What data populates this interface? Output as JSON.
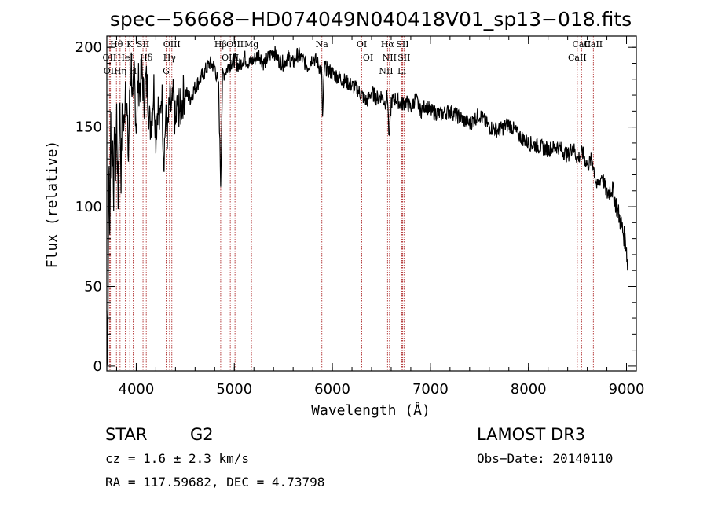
{
  "chart_data": {
    "type": "line",
    "title": "spec−56668−HD074049N040418V01_sp13−018.fits",
    "xlabel": "Wavelength (Å)",
    "ylabel": "Flux (relative)",
    "xlim": [
      3700,
      9100
    ],
    "ylim": [
      -3,
      207
    ],
    "xticks": [
      4000,
      5000,
      6000,
      7000,
      8000,
      9000
    ],
    "yticks": [
      0,
      50,
      100,
      150,
      200
    ],
    "series": [
      {
        "name": "flux",
        "x": [
          3700,
          3710,
          3720,
          3730,
          3740,
          3750,
          3760,
          3770,
          3780,
          3790,
          3800,
          3815,
          3830,
          3845,
          3860,
          3875,
          3890,
          3905,
          3920,
          3935,
          3950,
          3965,
          3980,
          4000,
          4020,
          4040,
          4060,
          4080,
          4100,
          4120,
          4140,
          4160,
          4180,
          4200,
          4220,
          4240,
          4260,
          4280,
          4300,
          4320,
          4340,
          4360,
          4380,
          4400,
          4420,
          4450,
          4480,
          4500,
          4550,
          4600,
          4650,
          4700,
          4750,
          4800,
          4840,
          4861,
          4880,
          4920,
          4960,
          5000,
          5050,
          5100,
          5150,
          5200,
          5250,
          5300,
          5350,
          5400,
          5450,
          5500,
          5550,
          5600,
          5650,
          5700,
          5750,
          5800,
          5850,
          5890,
          5900,
          5920,
          5950,
          6000,
          6050,
          6100,
          6150,
          6200,
          6250,
          6300,
          6350,
          6400,
          6450,
          6500,
          6540,
          6563,
          6580,
          6600,
          6650,
          6700,
          6750,
          6800,
          6850,
          6900,
          6950,
          7000,
          7100,
          7200,
          7300,
          7400,
          7500,
          7600,
          7700,
          7800,
          7900,
          8000,
          8100,
          8200,
          8300,
          8400,
          8450,
          8500,
          8550,
          8600,
          8650,
          8700,
          8750,
          8800,
          8850,
          8900,
          8950,
          9000,
          9010
        ],
        "y": [
          35,
          8,
          130,
          85,
          155,
          125,
          140,
          110,
          150,
          125,
          160,
          100,
          170,
          120,
          165,
          145,
          180,
          160,
          130,
          175,
          190,
          160,
          185,
          150,
          178,
          175,
          185,
          165,
          180,
          170,
          150,
          160,
          175,
          145,
          165,
          150,
          175,
          130,
          155,
          145,
          165,
          160,
          168,
          150,
          165,
          160,
          170,
          172,
          168,
          175,
          180,
          185,
          190,
          188,
          175,
          115,
          182,
          186,
          190,
          192,
          188,
          194,
          190,
          192,
          196,
          190,
          194,
          198,
          192,
          190,
          194,
          190,
          196,
          192,
          188,
          194,
          190,
          185,
          155,
          188,
          186,
          184,
          182,
          180,
          178,
          176,
          174,
          170,
          166,
          172,
          168,
          170,
          165,
          170,
          140,
          166,
          168,
          164,
          166,
          162,
          168,
          160,
          164,
          160,
          158,
          160,
          156,
          152,
          158,
          150,
          148,
          152,
          145,
          140,
          138,
          136,
          138,
          132,
          138,
          130,
          134,
          126,
          130,
          112,
          120,
          108,
          112,
          100,
          88,
          75,
          60
        ]
      }
    ],
    "spectral_lines": [
      {
        "label": "Hθ",
        "w": 3798
      },
      {
        "label": "OII",
        "w": 3727
      },
      {
        "label": "OII",
        "w": 3737
      },
      {
        "label": "Hη",
        "w": 3835
      },
      {
        "label": "HeI",
        "w": 3889
      },
      {
        "label": "K",
        "w": 3934
      },
      {
        "label": "H",
        "w": 3969
      },
      {
        "label": "SII",
        "w": 4069
      },
      {
        "label": "Hδ",
        "w": 4102
      },
      {
        "label": "OIII",
        "w": 4363
      },
      {
        "label": "Hγ",
        "w": 4340
      },
      {
        "label": "G",
        "w": 4305
      },
      {
        "label": "Hβ",
        "w": 4861
      },
      {
        "label": "OIII",
        "w": 5007
      },
      {
        "label": "OIII",
        "w": 4959
      },
      {
        "label": "Mg",
        "w": 5175
      },
      {
        "label": "Na",
        "w": 5893
      },
      {
        "label": "OI",
        "w": 6300
      },
      {
        "label": "OI",
        "w": 6364
      },
      {
        "label": "Hα",
        "w": 6563
      },
      {
        "label": "NII",
        "w": 6583
      },
      {
        "label": "NII",
        "w": 6548
      },
      {
        "label": "SII",
        "w": 6716
      },
      {
        "label": "SII",
        "w": 6731
      },
      {
        "label": "Li",
        "w": 6708
      },
      {
        "label": "CaII",
        "w": 8542
      },
      {
        "label": "CaII",
        "w": 8498
      },
      {
        "label": "CaII",
        "w": 8662
      }
    ]
  },
  "info": {
    "obj_class": "STAR",
    "subclass": "G2",
    "survey": "LAMOST DR3",
    "cz": "cz = 1.6 ± 2.3 km/s",
    "obs_date": "Obs−Date: 20140110",
    "radec": "RA = 117.59682, DEC =    4.73798"
  }
}
